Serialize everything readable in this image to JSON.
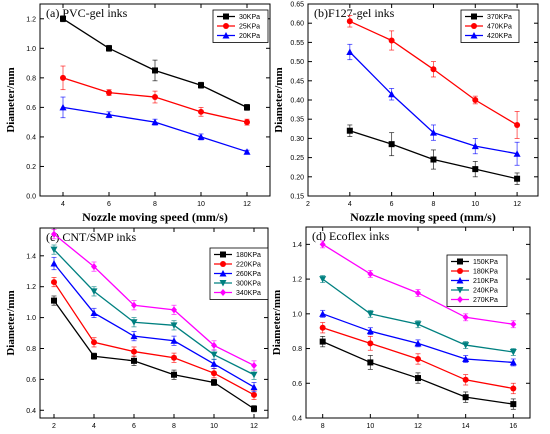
{
  "chart_data": [
    {
      "type": "line",
      "title": "(a) PVC-gel inks",
      "xlabel": "Nozzle moving speed  (mm/s)",
      "ylabel": "Diameter/mm",
      "xlim": [
        3,
        13
      ],
      "ylim": [
        0,
        1.3
      ],
      "xticks": [
        4,
        6,
        8,
        10,
        12
      ],
      "yticks": [
        0.0,
        0.2,
        0.4,
        0.6,
        0.8,
        1.0,
        1.2
      ],
      "legend_position": "top-right",
      "x": [
        4,
        6,
        8,
        10,
        12
      ],
      "series": [
        {
          "name": "30KPa",
          "color": "#000000",
          "marker": "square",
          "values": [
            1.2,
            1.0,
            0.85,
            0.75,
            0.6
          ],
          "errors": [
            0.02,
            0.02,
            0.07,
            0.02,
            0.02
          ]
        },
        {
          "name": "25KPa",
          "color": "#ff0000",
          "marker": "circle",
          "values": [
            0.8,
            0.7,
            0.67,
            0.57,
            0.5
          ],
          "errors": [
            0.08,
            0.02,
            0.04,
            0.03,
            0.02
          ]
        },
        {
          "name": "20KPa",
          "color": "#0000ff",
          "marker": "triangle",
          "values": [
            0.6,
            0.55,
            0.5,
            0.4,
            0.3
          ],
          "errors": [
            0.07,
            0.02,
            0.02,
            0.02,
            0.01
          ]
        }
      ]
    },
    {
      "type": "line",
      "title": "(b)F127-gel inks",
      "xlabel": "Nozzle moving speed  (mm/s)",
      "ylabel": "Diameter/mm",
      "xlim": [
        2,
        13
      ],
      "ylim": [
        0.15,
        0.65
      ],
      "xticks": [
        2,
        4,
        6,
        8,
        10,
        12
      ],
      "yticks": [
        0.15,
        0.2,
        0.25,
        0.3,
        0.35,
        0.4,
        0.45,
        0.5,
        0.55,
        0.6,
        0.65
      ],
      "legend_position": "top-right",
      "x": [
        4,
        6,
        8,
        10,
        12
      ],
      "series": [
        {
          "name": "370KPa",
          "color": "#000000",
          "marker": "square",
          "values": [
            0.32,
            0.285,
            0.245,
            0.22,
            0.195
          ],
          "errors": [
            0.015,
            0.03,
            0.025,
            0.02,
            0.015
          ]
        },
        {
          "name": "470KPa",
          "color": "#ff0000",
          "marker": "circle",
          "values": [
            0.605,
            0.555,
            0.48,
            0.4,
            0.335
          ],
          "errors": [
            0.015,
            0.025,
            0.02,
            0.01,
            0.035
          ]
        },
        {
          "name": "420KPa",
          "color": "#0000ff",
          "marker": "triangle",
          "values": [
            0.525,
            0.415,
            0.315,
            0.28,
            0.26
          ],
          "errors": [
            0.02,
            0.015,
            0.02,
            0.02,
            0.03
          ]
        }
      ]
    },
    {
      "type": "line",
      "title": "(c) CNT/SMP inks",
      "xlabel": "Nozzle moving speed  (mm/s)",
      "ylabel": "Diameter/mm",
      "xlim": [
        1.3,
        12.7
      ],
      "ylim": [
        0.35,
        1.58
      ],
      "xticks": [
        2,
        4,
        6,
        8,
        10,
        12
      ],
      "yticks": [
        0.4,
        0.6,
        0.8,
        1.0,
        1.2,
        1.4
      ],
      "legend_position": "top-right",
      "x": [
        2,
        4,
        6,
        8,
        10,
        12
      ],
      "series": [
        {
          "name": "180KPa",
          "color": "#000000",
          "marker": "square",
          "values": [
            1.11,
            0.75,
            0.72,
            0.63,
            0.58,
            0.41
          ],
          "errors": [
            0.03,
            0.02,
            0.03,
            0.03,
            0.02,
            0.02
          ]
        },
        {
          "name": "220KPa",
          "color": "#ff0000",
          "marker": "circle",
          "values": [
            1.23,
            0.84,
            0.78,
            0.74,
            0.64,
            0.5
          ],
          "errors": [
            0.03,
            0.03,
            0.03,
            0.03,
            0.03,
            0.03
          ]
        },
        {
          "name": "260KPa",
          "color": "#0000ff",
          "marker": "triangle",
          "values": [
            1.35,
            1.03,
            0.88,
            0.85,
            0.7,
            0.55
          ],
          "errors": [
            0.04,
            0.03,
            0.03,
            0.03,
            0.03,
            0.03
          ]
        },
        {
          "name": "300KPa",
          "color": "#008080",
          "marker": "triangle-down",
          "values": [
            1.44,
            1.17,
            0.97,
            0.95,
            0.76,
            0.63
          ],
          "errors": [
            0.03,
            0.03,
            0.03,
            0.03,
            0.03,
            0.03
          ]
        },
        {
          "name": "340KPa",
          "color": "#ff00ff",
          "marker": "diamond",
          "values": [
            1.54,
            1.33,
            1.08,
            1.05,
            0.82,
            0.69
          ],
          "errors": [
            0.03,
            0.03,
            0.03,
            0.03,
            0.03,
            0.03
          ]
        }
      ]
    },
    {
      "type": "line",
      "title": "(d) Ecoflex inks",
      "xlabel": "Nozzle moving speed  (mm/s)",
      "ylabel": "Diameter/mm",
      "xlim": [
        7.3,
        16.7
      ],
      "ylim": [
        0.4,
        1.5
      ],
      "xticks": [
        8,
        10,
        12,
        14,
        16
      ],
      "yticks": [
        0.4,
        0.6,
        0.8,
        1.0,
        1.2,
        1.4
      ],
      "legend_position": "top-right",
      "x": [
        8,
        10,
        12,
        14,
        16
      ],
      "series": [
        {
          "name": "150KPa",
          "color": "#000000",
          "marker": "square",
          "values": [
            0.84,
            0.72,
            0.63,
            0.52,
            0.48
          ],
          "errors": [
            0.03,
            0.04,
            0.03,
            0.03,
            0.03
          ]
        },
        {
          "name": "180KPa",
          "color": "#ff0000",
          "marker": "circle",
          "values": [
            0.92,
            0.83,
            0.74,
            0.62,
            0.57
          ],
          "errors": [
            0.03,
            0.04,
            0.03,
            0.03,
            0.03
          ]
        },
        {
          "name": "210KPa",
          "color": "#0000ff",
          "marker": "triangle",
          "values": [
            1.0,
            0.9,
            0.83,
            0.74,
            0.72
          ],
          "errors": [
            0.02,
            0.02,
            0.02,
            0.02,
            0.02
          ]
        },
        {
          "name": "240KPa",
          "color": "#008080",
          "marker": "triangle-down",
          "values": [
            1.2,
            1.0,
            0.94,
            0.82,
            0.78
          ],
          "errors": [
            0.02,
            0.02,
            0.02,
            0.02,
            0.02
          ]
        },
        {
          "name": "270KPa",
          "color": "#ff00ff",
          "marker": "diamond",
          "values": [
            1.4,
            1.23,
            1.12,
            0.98,
            0.94
          ],
          "errors": [
            0.02,
            0.02,
            0.02,
            0.02,
            0.02
          ]
        }
      ]
    }
  ]
}
